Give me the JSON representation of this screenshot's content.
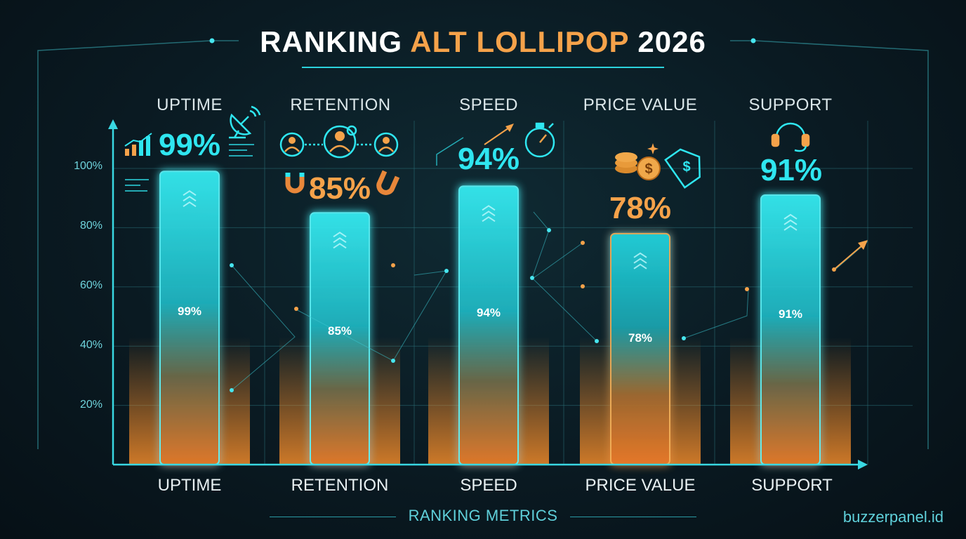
{
  "title": {
    "part1": "RANKING",
    "part2": "ALT LOLLIPOP",
    "part3": "2026"
  },
  "chart_data": {
    "type": "bar",
    "title": "RANKING ALT LOLLIPOP 2026",
    "xlabel": "RANKING METRICS",
    "ylabel": "",
    "ylim": [
      0,
      100
    ],
    "yticks": [
      "20%",
      "40%",
      "60%",
      "80%",
      "100%"
    ],
    "categories": [
      "UPTIME",
      "RETENTION",
      "SPEED",
      "PRICE VALUE",
      "SUPPORT"
    ],
    "values": [
      99,
      85,
      94,
      78,
      91
    ],
    "value_labels": [
      "99%",
      "85%",
      "94%",
      "78%",
      "91%"
    ],
    "grid": true
  },
  "colors": {
    "accent_cyan": "#2fe6f0",
    "accent_orange": "#f5a24a",
    "background": "#0a1a22"
  },
  "icons": [
    "satellite-dish-icon",
    "growth-chart-icon",
    "users-icon",
    "magnet-icon",
    "stopwatch-icon",
    "coins-icon",
    "price-tag-icon",
    "headset-icon"
  ],
  "watermark": "buzzerpanel.id"
}
